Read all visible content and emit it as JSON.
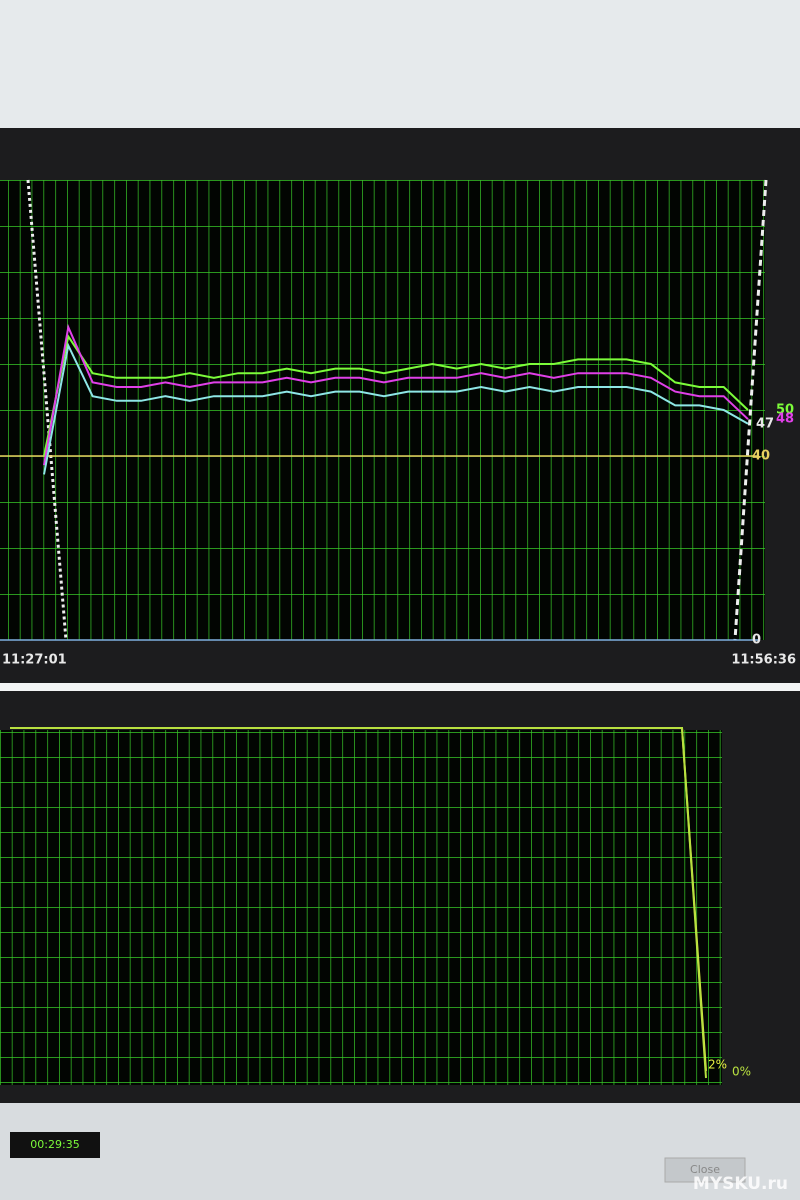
{
  "chart_data": [
    {
      "type": "line",
      "categories": [
        "11:27:01",
        null,
        null,
        null,
        null,
        null,
        null,
        null,
        null,
        null,
        null,
        null,
        null,
        null,
        null,
        null,
        null,
        null,
        null,
        null,
        null,
        null,
        null,
        null,
        null,
        null,
        null,
        null,
        null,
        "11:56:36"
      ],
      "series": [
        {
          "color": "#7cfc3a",
          "values": [
            40,
            66,
            58,
            57,
            57,
            57,
            58,
            57,
            58,
            58,
            59,
            58,
            59,
            59,
            58,
            59,
            60,
            59,
            60,
            59,
            60,
            60,
            61,
            61,
            61,
            60,
            56,
            55,
            55,
            50
          ]
        },
        {
          "color": "#e040e8",
          "values": [
            38,
            68,
            56,
            55,
            55,
            56,
            55,
            56,
            56,
            56,
            57,
            56,
            57,
            57,
            56,
            57,
            57,
            57,
            58,
            57,
            58,
            57,
            58,
            58,
            58,
            57,
            54,
            53,
            53,
            48
          ]
        },
        {
          "color": "#8ee6e6",
          "values": [
            36,
            64,
            53,
            52,
            52,
            53,
            52,
            53,
            53,
            53,
            54,
            53,
            54,
            54,
            53,
            54,
            54,
            54,
            55,
            54,
            55,
            54,
            55,
            55,
            55,
            54,
            51,
            51,
            50,
            47
          ]
        }
      ],
      "ylim": [
        0,
        100
      ],
      "yticks": [
        0,
        40
      ]
    },
    {
      "type": "line",
      "series": [
        {
          "color": "#e8f040",
          "values": [
            100,
            100,
            100,
            100,
            100,
            100,
            100,
            100,
            100,
            100,
            100,
            100,
            100,
            100,
            100,
            100,
            100,
            100,
            100,
            100,
            100,
            100,
            100,
            100,
            100,
            100,
            100,
            100,
            100,
            2
          ],
          "value_labels": [
            null,
            null,
            null,
            null,
            null,
            null,
            null,
            null,
            null,
            null,
            null,
            null,
            null,
            null,
            null,
            null,
            null,
            null,
            null,
            null,
            null,
            null,
            null,
            null,
            null,
            null,
            null,
            null,
            null,
            "2%"
          ]
        },
        {
          "color": "#b8e040",
          "values": [
            100,
            100,
            100,
            100,
            100,
            100,
            100,
            100,
            100,
            100,
            100,
            100,
            100,
            100,
            100,
            100,
            100,
            100,
            100,
            100,
            100,
            100,
            100,
            100,
            100,
            100,
            100,
            100,
            100,
            0
          ],
          "value_labels": [
            null,
            null,
            null,
            null,
            null,
            null,
            null,
            null,
            null,
            null,
            null,
            null,
            null,
            null,
            null,
            null,
            null,
            null,
            null,
            null,
            null,
            null,
            null,
            null,
            null,
            null,
            null,
            null,
            null,
            "0%"
          ]
        }
      ],
      "ylim": [
        0,
        100
      ]
    }
  ],
  "footer": {
    "elapsed": "00:29:35",
    "close_button": "Close"
  },
  "watermark": "MYSKU.ru"
}
